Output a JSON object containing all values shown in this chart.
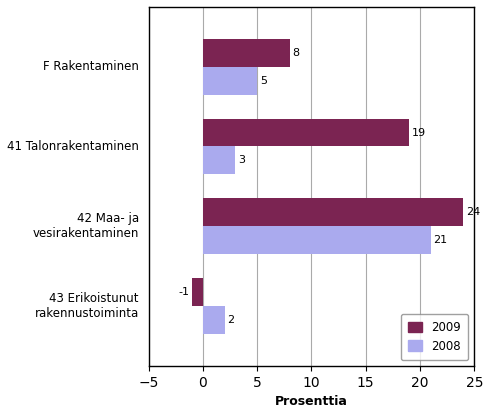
{
  "categories": [
    "43 Erikoistunut\nrakennustoiminta",
    "42 Maa- ja\nvesirakentaminen",
    "41 Talonrakentaminen",
    "F Rakentaminen"
  ],
  "values_2009": [
    -1,
    24,
    19,
    8
  ],
  "values_2008": [
    2,
    21,
    3,
    5
  ],
  "color_2009": "#7B2452",
  "color_2008": "#AAAAEE",
  "xlabel": "Prosenttia",
  "xlim": [
    -5,
    25
  ],
  "xticks": [
    -5,
    0,
    5,
    10,
    15,
    20,
    25
  ],
  "bar_height": 0.35,
  "legend_labels": [
    "2009",
    "2008"
  ],
  "background_color": "#FFFFFF",
  "grid_color": "#AAAAAA"
}
